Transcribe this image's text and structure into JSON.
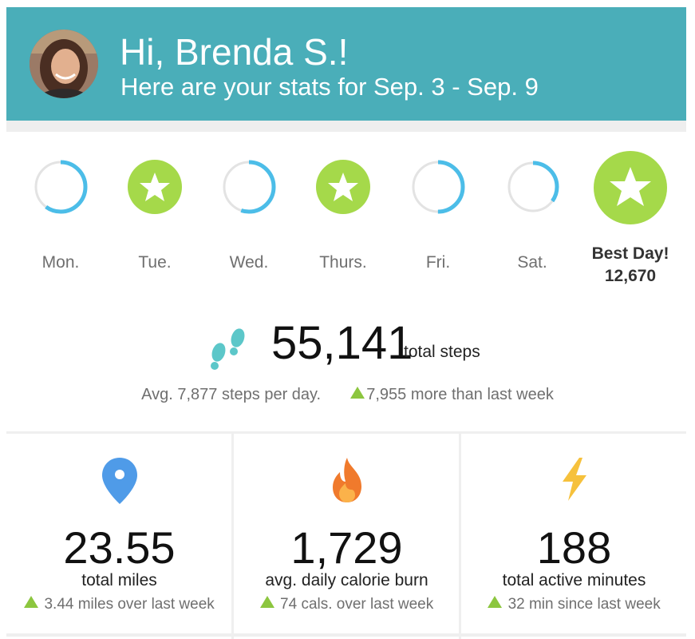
{
  "header": {
    "greeting": "Hi, Brenda S.!",
    "subtitle": "Here are your stats for Sep. 3 - Sep. 9",
    "color": "#4aaeb9"
  },
  "days": [
    {
      "label": "Mon.",
      "status": "progress",
      "progress": 0.6
    },
    {
      "label": "Tue.",
      "status": "goal-met",
      "icon": "star-icon"
    },
    {
      "label": "Wed.",
      "status": "progress",
      "progress": 0.55
    },
    {
      "label": "Thurs.",
      "status": "goal-met",
      "icon": "star-icon"
    },
    {
      "label": "Fri.",
      "status": "progress",
      "progress": 0.5
    },
    {
      "label": "Sat.",
      "status": "progress",
      "progress": 0.35
    }
  ],
  "best_day": {
    "label": "Best Day!",
    "value": "12,670",
    "icon": "star-icon"
  },
  "steps": {
    "total": "55,141",
    "label": "total steps",
    "average": "Avg. 7,877 steps per day.",
    "change": "7,955 more than last week",
    "icon": "footprints-icon"
  },
  "stats": [
    {
      "value": "23.55",
      "label": "total miles",
      "delta": "3.44 miles over last week",
      "icon": "location-pin-icon"
    },
    {
      "value": "1,729",
      "label": "avg. daily calorie burn",
      "delta": "74 cals. over last week",
      "icon": "flame-icon"
    },
    {
      "value": "188",
      "label": "total active minutes",
      "delta": "32 min since last week",
      "icon": "lightning-icon"
    }
  ],
  "colors": {
    "accent_teal": "#4aaeb9",
    "goal_green": "#a5d94a",
    "progress_blue": "#4cbde8",
    "ring_gray": "#e3e3e3",
    "up_green": "#8cc63f"
  }
}
